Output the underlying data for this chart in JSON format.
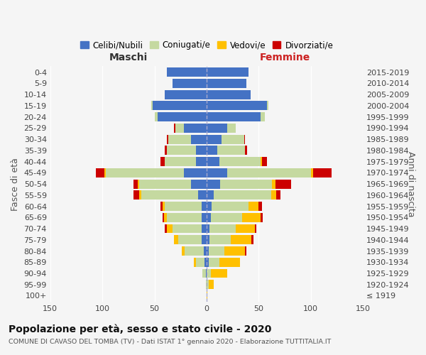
{
  "age_groups": [
    "100+",
    "95-99",
    "90-94",
    "85-89",
    "80-84",
    "75-79",
    "70-74",
    "65-69",
    "60-64",
    "55-59",
    "50-54",
    "45-49",
    "40-44",
    "35-39",
    "30-34",
    "25-29",
    "20-24",
    "15-19",
    "10-14",
    "5-9",
    "0-4"
  ],
  "birth_years": [
    "≤ 1919",
    "1920-1924",
    "1925-1929",
    "1930-1934",
    "1935-1939",
    "1940-1944",
    "1945-1949",
    "1950-1954",
    "1955-1959",
    "1960-1964",
    "1965-1969",
    "1970-1974",
    "1975-1979",
    "1980-1984",
    "1985-1989",
    "1990-1994",
    "1995-1999",
    "2000-2004",
    "2005-2009",
    "2010-2014",
    "2015-2019"
  ],
  "colors": {
    "celibi": "#4472c4",
    "coniugati": "#c5d9a0",
    "vedovi": "#ffc000",
    "divorziati": "#cc0000"
  },
  "maschi": {
    "celibi": [
      0,
      0,
      1,
      2,
      3,
      5,
      5,
      5,
      5,
      8,
      15,
      22,
      10,
      10,
      15,
      22,
      47,
      52,
      40,
      33,
      38
    ],
    "coniugati": [
      0,
      1,
      3,
      8,
      18,
      22,
      28,
      33,
      35,
      55,
      50,
      75,
      30,
      28,
      22,
      8,
      3,
      1,
      0,
      0,
      0
    ],
    "vedovi": [
      0,
      0,
      0,
      2,
      3,
      4,
      5,
      3,
      2,
      2,
      1,
      1,
      0,
      0,
      0,
      0,
      0,
      0,
      0,
      0,
      0
    ],
    "divorziati": [
      0,
      0,
      0,
      0,
      0,
      0,
      2,
      1,
      2,
      5,
      4,
      8,
      4,
      2,
      1,
      1,
      0,
      0,
      0,
      0,
      0
    ]
  },
  "femmine": {
    "celibi": [
      0,
      0,
      0,
      2,
      2,
      3,
      3,
      4,
      5,
      7,
      13,
      20,
      12,
      10,
      14,
      20,
      52,
      58,
      42,
      38,
      40
    ],
    "coniugati": [
      0,
      2,
      4,
      10,
      15,
      20,
      25,
      30,
      35,
      55,
      50,
      80,
      40,
      27,
      22,
      8,
      4,
      1,
      0,
      0,
      0
    ],
    "vedovi": [
      1,
      5,
      16,
      20,
      20,
      20,
      18,
      18,
      10,
      5,
      3,
      2,
      1,
      0,
      0,
      0,
      0,
      0,
      0,
      0,
      0
    ],
    "divorziati": [
      0,
      0,
      0,
      0,
      1,
      2,
      2,
      2,
      3,
      4,
      15,
      18,
      5,
      2,
      1,
      0,
      0,
      0,
      0,
      0,
      0
    ]
  },
  "xlim": 150,
  "title": "Popolazione per età, sesso e stato civile - 2020",
  "subtitle": "COMUNE DI CAVASO DEL TOMBA (TV) - Dati ISTAT 1° gennaio 2020 - Elaborazione TUTTITALIA.IT",
  "ylabel_left": "Fasce di età",
  "ylabel_right": "Anni di nascita",
  "xlabel_left": "Maschi",
  "xlabel_right": "Femmine",
  "legend_labels": [
    "Celibi/Nubili",
    "Coniugati/e",
    "Vedovi/e",
    "Divorziati/e"
  ],
  "bg_color": "#f5f5f5"
}
